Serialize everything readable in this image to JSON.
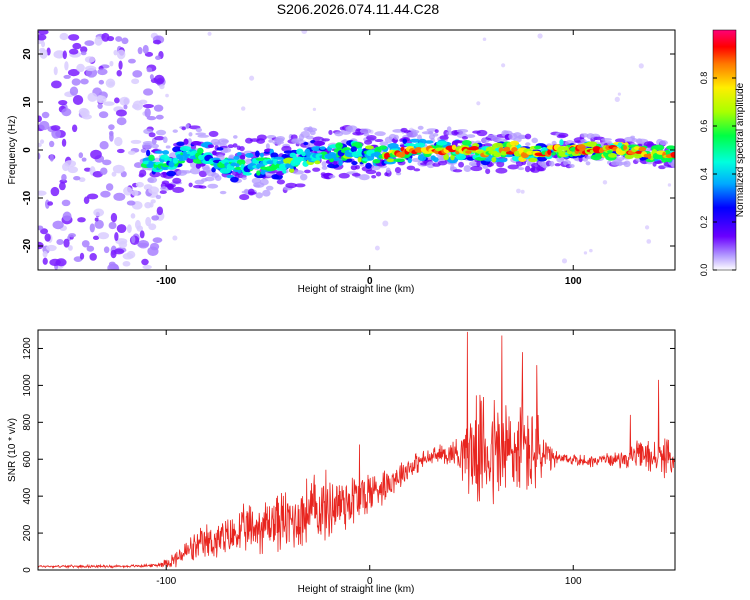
{
  "figure": {
    "title": "S206.2026.074.11.44.C28"
  },
  "colors": {
    "background": "#ffffff",
    "axis": "#000000",
    "snr_line": "#e8251f",
    "colormap": [
      "#ffffff",
      "#b39bff",
      "#6a00ff",
      "#0000ff",
      "#00aaff",
      "#00ffdd",
      "#00ff44",
      "#aaff00",
      "#ffee00",
      "#ff7700",
      "#ff0000",
      "#ff0077"
    ]
  },
  "chart_data": [
    {
      "type": "heatmap",
      "id": "spectrogram",
      "title": "S206.2026.074.11.44.C28",
      "xlabel": "Height of straight line (km)",
      "ylabel": "Frequency (Hz)",
      "xlim": [
        -163,
        150
      ],
      "ylim": [
        -25,
        25
      ],
      "xticks": [
        -100,
        0,
        100
      ],
      "xtick_labels": [
        "-100",
        "0",
        "100"
      ],
      "yticks": [
        -20,
        -10,
        0,
        10,
        20
      ],
      "ytick_labels": [
        "-20",
        "-10",
        "0",
        "10",
        "20"
      ],
      "colorbar": {
        "label": "Normalized spectral amplitude",
        "range": [
          0,
          1
        ],
        "ticks": [
          0.0,
          0.2,
          0.4,
          0.6,
          0.8
        ],
        "tick_labels": [
          "0.0",
          "0.2",
          "0.4",
          "0.6",
          "0.8"
        ]
      },
      "ridge_frequency_hz": [
        [
          -163,
          null
        ],
        [
          -110,
          -3
        ],
        [
          -100,
          -3
        ],
        [
          -90,
          -1
        ],
        [
          -80,
          -2
        ],
        [
          -70,
          -3
        ],
        [
          -60,
          -4
        ],
        [
          -50,
          -3
        ],
        [
          -40,
          -3
        ],
        [
          -30,
          -1
        ],
        [
          -20,
          -1
        ],
        [
          -10,
          0
        ],
        [
          0,
          -1
        ],
        [
          10,
          -1
        ],
        [
          20,
          0
        ],
        [
          30,
          0
        ],
        [
          40,
          0
        ],
        [
          50,
          0
        ],
        [
          60,
          -1
        ],
        [
          70,
          0
        ],
        [
          80,
          -1
        ],
        [
          90,
          0
        ],
        [
          100,
          0
        ],
        [
          110,
          0
        ],
        [
          120,
          0
        ],
        [
          130,
          0
        ],
        [
          140,
          -1
        ],
        [
          150,
          -1
        ]
      ],
      "noise_region_x": [
        -163,
        -110
      ]
    },
    {
      "type": "line",
      "id": "snr",
      "title": "",
      "xlabel": "Height of straight line (km)",
      "ylabel": "SNR (10 * v/v)",
      "xlim": [
        -163,
        150
      ],
      "ylim": [
        0,
        1300
      ],
      "xticks": [
        -100,
        0,
        100
      ],
      "xtick_labels": [
        "-100",
        "0",
        "100"
      ],
      "yticks": [
        0,
        200,
        400,
        600,
        800,
        1000,
        1200
      ],
      "ytick_labels": [
        "0",
        "200",
        "400",
        "600",
        "800",
        "1000",
        "1200"
      ],
      "series": [
        {
          "name": "SNR",
          "x": [
            -163,
            -140,
            -120,
            -105,
            -100,
            -95,
            -90,
            -85,
            -80,
            -75,
            -70,
            -65,
            -60,
            -55,
            -50,
            -45,
            -40,
            -35,
            -30,
            -25,
            -20,
            -15,
            -10,
            -5,
            0,
            5,
            10,
            15,
            20,
            25,
            30,
            35,
            40,
            45,
            50,
            55,
            60,
            65,
            70,
            75,
            80,
            85,
            90,
            95,
            100,
            105,
            110,
            115,
            120,
            125,
            130,
            135,
            140,
            145,
            150
          ],
          "mean": [
            20,
            20,
            20,
            25,
            40,
            60,
            100,
            120,
            150,
            160,
            170,
            200,
            220,
            230,
            250,
            270,
            260,
            280,
            320,
            330,
            340,
            360,
            380,
            390,
            420,
            450,
            480,
            520,
            560,
            590,
            610,
            630,
            630,
            640,
            640,
            650,
            640,
            630,
            640,
            650,
            640,
            620,
            600,
            600,
            600,
            590,
            590,
            600,
            600,
            600,
            620,
            620,
            610,
            610,
            600
          ],
          "amplitude": [
            8,
            8,
            8,
            10,
            30,
            60,
            80,
            100,
            120,
            130,
            130,
            140,
            160,
            170,
            180,
            200,
            200,
            210,
            230,
            230,
            220,
            210,
            200,
            180,
            150,
            120,
            100,
            90,
            80,
            60,
            60,
            60,
            80,
            150,
            300,
            350,
            380,
            400,
            380,
            350,
            350,
            200,
            60,
            40,
            40,
            40,
            40,
            40,
            40,
            60,
            80,
            100,
            120,
            120,
            80
          ],
          "peaks": [
            [
              -5,
              680
            ],
            [
              48,
              1290
            ],
            [
              65,
              1270
            ],
            [
              75,
              1180
            ],
            [
              82,
              1110
            ],
            [
              128,
              840
            ],
            [
              142,
              1030
            ]
          ]
        }
      ]
    }
  ]
}
